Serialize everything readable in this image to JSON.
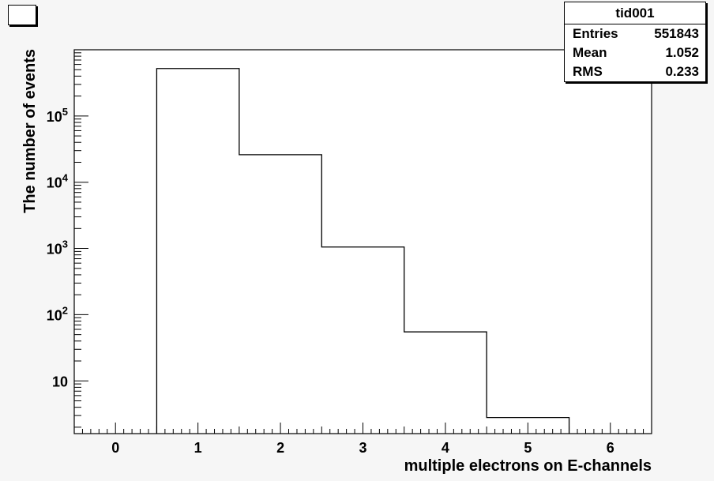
{
  "chart_data": {
    "type": "bar",
    "histogram_name": "tid001",
    "stats": [
      {
        "label": "Entries",
        "value": "551843"
      },
      {
        "label": "Mean",
        "value": "1.052"
      },
      {
        "label": "RMS",
        "value": "0.233"
      }
    ],
    "bins": [
      {
        "x_low": 0.5,
        "x_high": 1.5,
        "count": 521000
      },
      {
        "x_low": 1.5,
        "x_high": 2.5,
        "count": 26000
      },
      {
        "x_low": 2.5,
        "x_high": 3.5,
        "count": 1050
      },
      {
        "x_low": 3.5,
        "x_high": 4.5,
        "count": 55
      },
      {
        "x_low": 4.5,
        "x_high": 5.5,
        "count": 2.8
      }
    ],
    "xlim": [
      -0.5,
      6.5
    ],
    "ylim": [
      1.6,
      1000000
    ],
    "yscale": "log",
    "x_ticks": [
      "0",
      "1",
      "2",
      "3",
      "4",
      "5",
      "6"
    ],
    "y_ticks": [
      {
        "value": 10,
        "base": "10",
        "exp": ""
      },
      {
        "value": 100,
        "base": "10",
        "exp": "2"
      },
      {
        "value": 1000,
        "base": "10",
        "exp": "3"
      },
      {
        "value": 10000,
        "base": "10",
        "exp": "4"
      },
      {
        "value": 100000,
        "base": "10",
        "exp": "5"
      }
    ],
    "xlabel": "multiple electrons on E-channels",
    "ylabel": "The number of events",
    "grid": false
  }
}
